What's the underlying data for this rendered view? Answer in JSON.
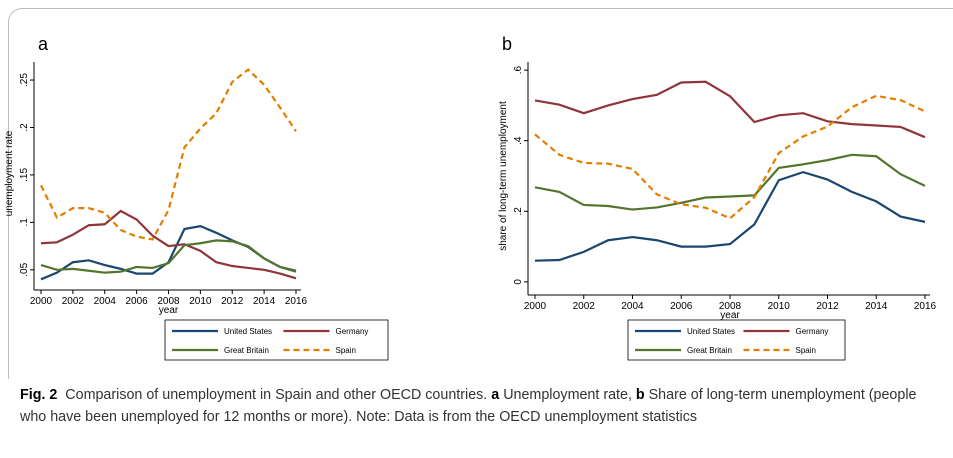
{
  "chart_data": [
    {
      "type": "line",
      "panel_label": "a",
      "y_label": "unemployment rate",
      "x_label": "year",
      "x": [
        2000,
        2001,
        2002,
        2003,
        2004,
        2005,
        2006,
        2007,
        2008,
        2009,
        2010,
        2011,
        2012,
        2013,
        2014,
        2015,
        2016
      ],
      "xlim": [
        2000,
        2016
      ],
      "xticks": [
        2000,
        2002,
        2004,
        2006,
        2008,
        2010,
        2012,
        2014,
        2016
      ],
      "ylim": [
        0.034,
        0.269
      ],
      "yticks": [
        {
          "value": 0.05,
          "label": ".05"
        },
        {
          "value": 0.1,
          "label": ".1"
        },
        {
          "value": 0.15,
          "label": ".15"
        },
        {
          "value": 0.2,
          "label": ".2"
        },
        {
          "value": 0.25,
          "label": ".25"
        }
      ],
      "series": [
        {
          "name": "United States",
          "color": "#1a476f",
          "style": "solid",
          "values": [
            0.04,
            0.047,
            0.058,
            0.06,
            0.055,
            0.051,
            0.046,
            0.046,
            0.058,
            0.093,
            0.096,
            0.089,
            0.081,
            0.074,
            0.062,
            0.053,
            0.049
          ]
        },
        {
          "name": "Germany",
          "color": "#90353b",
          "style": "solid",
          "values": [
            0.078,
            0.079,
            0.087,
            0.097,
            0.098,
            0.112,
            0.103,
            0.086,
            0.075,
            0.077,
            0.07,
            0.058,
            0.054,
            0.052,
            0.05,
            0.046,
            0.041
          ]
        },
        {
          "name": "Great Britain",
          "color": "#55752f",
          "style": "solid",
          "values": [
            0.055,
            0.05,
            0.051,
            0.049,
            0.047,
            0.048,
            0.053,
            0.052,
            0.057,
            0.076,
            0.078,
            0.081,
            0.08,
            0.075,
            0.062,
            0.053,
            0.048
          ]
        },
        {
          "name": "Spain",
          "color": "#e37e00",
          "style": "dashed",
          "values": [
            0.139,
            0.105,
            0.115,
            0.115,
            0.11,
            0.092,
            0.085,
            0.082,
            0.113,
            0.179,
            0.199,
            0.215,
            0.248,
            0.261,
            0.245,
            0.221,
            0.196
          ]
        }
      ]
    },
    {
      "type": "line",
      "panel_label": "b",
      "y_label": "share of long-term unemployment",
      "x_label": "year",
      "x": [
        2000,
        2001,
        2002,
        2003,
        2004,
        2005,
        2006,
        2007,
        2008,
        2009,
        2010,
        2011,
        2012,
        2013,
        2014,
        2015,
        2016
      ],
      "xlim": [
        2000,
        2016
      ],
      "xticks": [
        2000,
        2002,
        2004,
        2006,
        2008,
        2010,
        2012,
        2014,
        2016
      ],
      "ylim": [
        -0.023,
        0.623
      ],
      "yticks": [
        0,
        {
          "value": 0.2,
          "label": ".2"
        },
        {
          "value": 0.4,
          "label": ".4"
        },
        {
          "value": 0.6,
          "label": ".6"
        }
      ],
      "series": [
        {
          "name": "United States",
          "color": "#1a476f",
          "style": "solid",
          "values": [
            0.06,
            0.062,
            0.085,
            0.118,
            0.127,
            0.118,
            0.1,
            0.1,
            0.107,
            0.163,
            0.288,
            0.311,
            0.29,
            0.255,
            0.228,
            0.185,
            0.17
          ]
        },
        {
          "name": "Germany",
          "color": "#90353b",
          "style": "solid",
          "values": [
            0.514,
            0.502,
            0.478,
            0.5,
            0.518,
            0.53,
            0.565,
            0.567,
            0.526,
            0.453,
            0.472,
            0.478,
            0.455,
            0.447,
            0.443,
            0.439,
            0.41
          ]
        },
        {
          "name": "Great Britain",
          "color": "#55752f",
          "style": "solid",
          "values": [
            0.268,
            0.255,
            0.218,
            0.215,
            0.205,
            0.211,
            0.224,
            0.239,
            0.242,
            0.245,
            0.323,
            0.333,
            0.345,
            0.36,
            0.356,
            0.305,
            0.272
          ]
        },
        {
          "name": "Spain",
          "color": "#e37e00",
          "style": "dashed",
          "values": [
            0.418,
            0.36,
            0.337,
            0.335,
            0.32,
            0.248,
            0.22,
            0.21,
            0.18,
            0.24,
            0.365,
            0.412,
            0.44,
            0.495,
            0.527,
            0.515,
            0.483
          ]
        }
      ]
    }
  ],
  "caption": {
    "label": "Fig. 2",
    "text": "Comparison of unemployment in Spain and other OECD countries.",
    "parts": [
      {
        "label": "a",
        "text": "Unemployment rate,"
      },
      {
        "label": "b",
        "text": "Share of long-term unemployment (people who have been unemployed for 12 months or more). Note: Data is from the OECD unemployment statistics"
      }
    ]
  }
}
